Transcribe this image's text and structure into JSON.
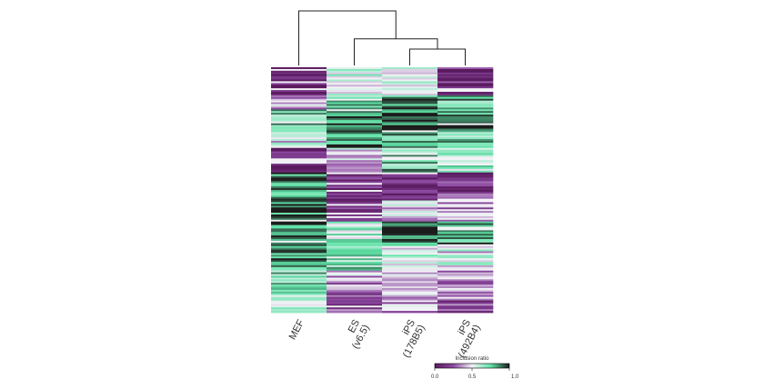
{
  "chart_data": {
    "type": "heatmap",
    "columns": [
      {
        "id": "MEF",
        "label_lines": [
          "MEF"
        ]
      },
      {
        "id": "ES",
        "label_lines": [
          "ES",
          "(v6.5)"
        ]
      },
      {
        "id": "iPS-178B5",
        "label_lines": [
          "iPS",
          "(178B5)"
        ]
      },
      {
        "id": "iPS-492B4",
        "label_lines": [
          "iPS",
          "(492B4)"
        ]
      }
    ],
    "row_count": 140,
    "block_profiles": [
      {
        "rows": 16,
        "values": [
          0.08,
          0.55,
          0.55,
          0.12
        ]
      },
      {
        "rows": 8,
        "values": [
          0.35,
          0.75,
          0.85,
          0.8
        ]
      },
      {
        "rows": 12,
        "values": [
          0.72,
          0.9,
          0.95,
          0.88
        ]
      },
      {
        "rows": 10,
        "values": [
          0.5,
          0.9,
          0.8,
          0.75
        ]
      },
      {
        "rows": 14,
        "values": [
          0.08,
          0.45,
          0.75,
          0.6
        ]
      },
      {
        "rows": 16,
        "values": [
          0.85,
          0.1,
          0.08,
          0.15
        ]
      },
      {
        "rows": 12,
        "values": [
          0.9,
          0.15,
          0.45,
          0.35
        ]
      },
      {
        "rows": 14,
        "values": [
          0.92,
          0.6,
          0.92,
          0.85
        ]
      },
      {
        "rows": 14,
        "values": [
          0.85,
          0.72,
          0.55,
          0.5
        ]
      },
      {
        "rows": 12,
        "values": [
          0.75,
          0.35,
          0.45,
          0.3
        ]
      },
      {
        "rows": 12,
        "values": [
          0.65,
          0.2,
          0.35,
          0.2
        ]
      }
    ],
    "dendrogram": {
      "leaf_order": [
        "MEF",
        "ES",
        "iPS-178B5",
        "iPS-492B4"
      ],
      "merges": [
        {
          "left": "iPS-178B5",
          "right": "iPS-492B4",
          "height": 0.25
        },
        {
          "left": "ES",
          "right": "iPS-178B5+iPS-492B4",
          "height": 0.45
        },
        {
          "left": "MEF",
          "right": "ES+iPS-178B5+iPS-492B4",
          "height": 1.0
        }
      ]
    },
    "colorscale": {
      "title": "Inclusion ratio",
      "min": 0.0,
      "max": 1.0,
      "ticks": [
        "0.0",
        "0.5",
        "1.0"
      ],
      "stops": [
        "#5a1a5e",
        "#8d4aa2",
        "#f2f2f6",
        "#5fe3a7",
        "#1c1c1c"
      ]
    }
  }
}
